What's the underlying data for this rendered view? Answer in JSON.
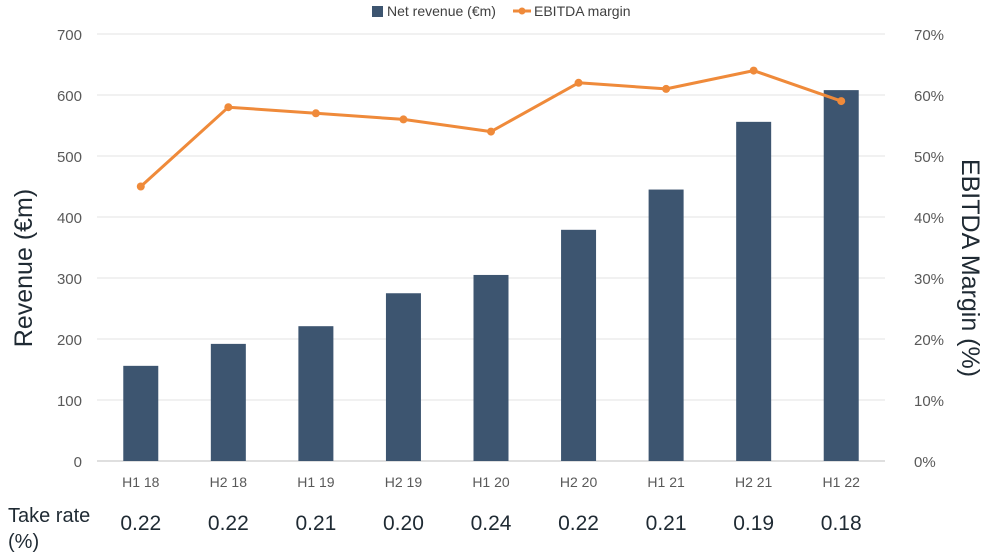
{
  "chart_data": {
    "type": "bar",
    "categories": [
      "H1 18",
      "H2 18",
      "H1 19",
      "H2 19",
      "H1 20",
      "H2 20",
      "H1 21",
      "H2 21",
      "H1 22"
    ],
    "series": [
      {
        "name": "Net revenue (€m)",
        "type": "bar",
        "axis": "left",
        "color": "#3d5570",
        "values": [
          156,
          192,
          221,
          275,
          305,
          379,
          445,
          556,
          608
        ]
      },
      {
        "name": "EBITDA margin",
        "type": "line",
        "axis": "right",
        "color": "#ef8a3a",
        "values": [
          45,
          58,
          57,
          56,
          54,
          62,
          61,
          64,
          59
        ]
      }
    ],
    "ylabel": "Revenue (€m)",
    "y2label": "EBITDA  Margin (%)",
    "ylim": [
      0,
      700
    ],
    "y2lim": [
      0,
      70
    ],
    "yticks": [
      "0",
      "100",
      "200",
      "300",
      "400",
      "500",
      "600",
      "700"
    ],
    "y2ticks": [
      "0%",
      "10%",
      "20%",
      "30%",
      "40%",
      "50%",
      "60%",
      "70%"
    ],
    "grid": true,
    "legend_position": "top-center"
  },
  "take_rate": {
    "label": "Take rate (%)",
    "values": [
      "0.22",
      "0.22",
      "0.21",
      "0.20",
      "0.24",
      "0.22",
      "0.21",
      "0.19",
      "0.18"
    ]
  }
}
